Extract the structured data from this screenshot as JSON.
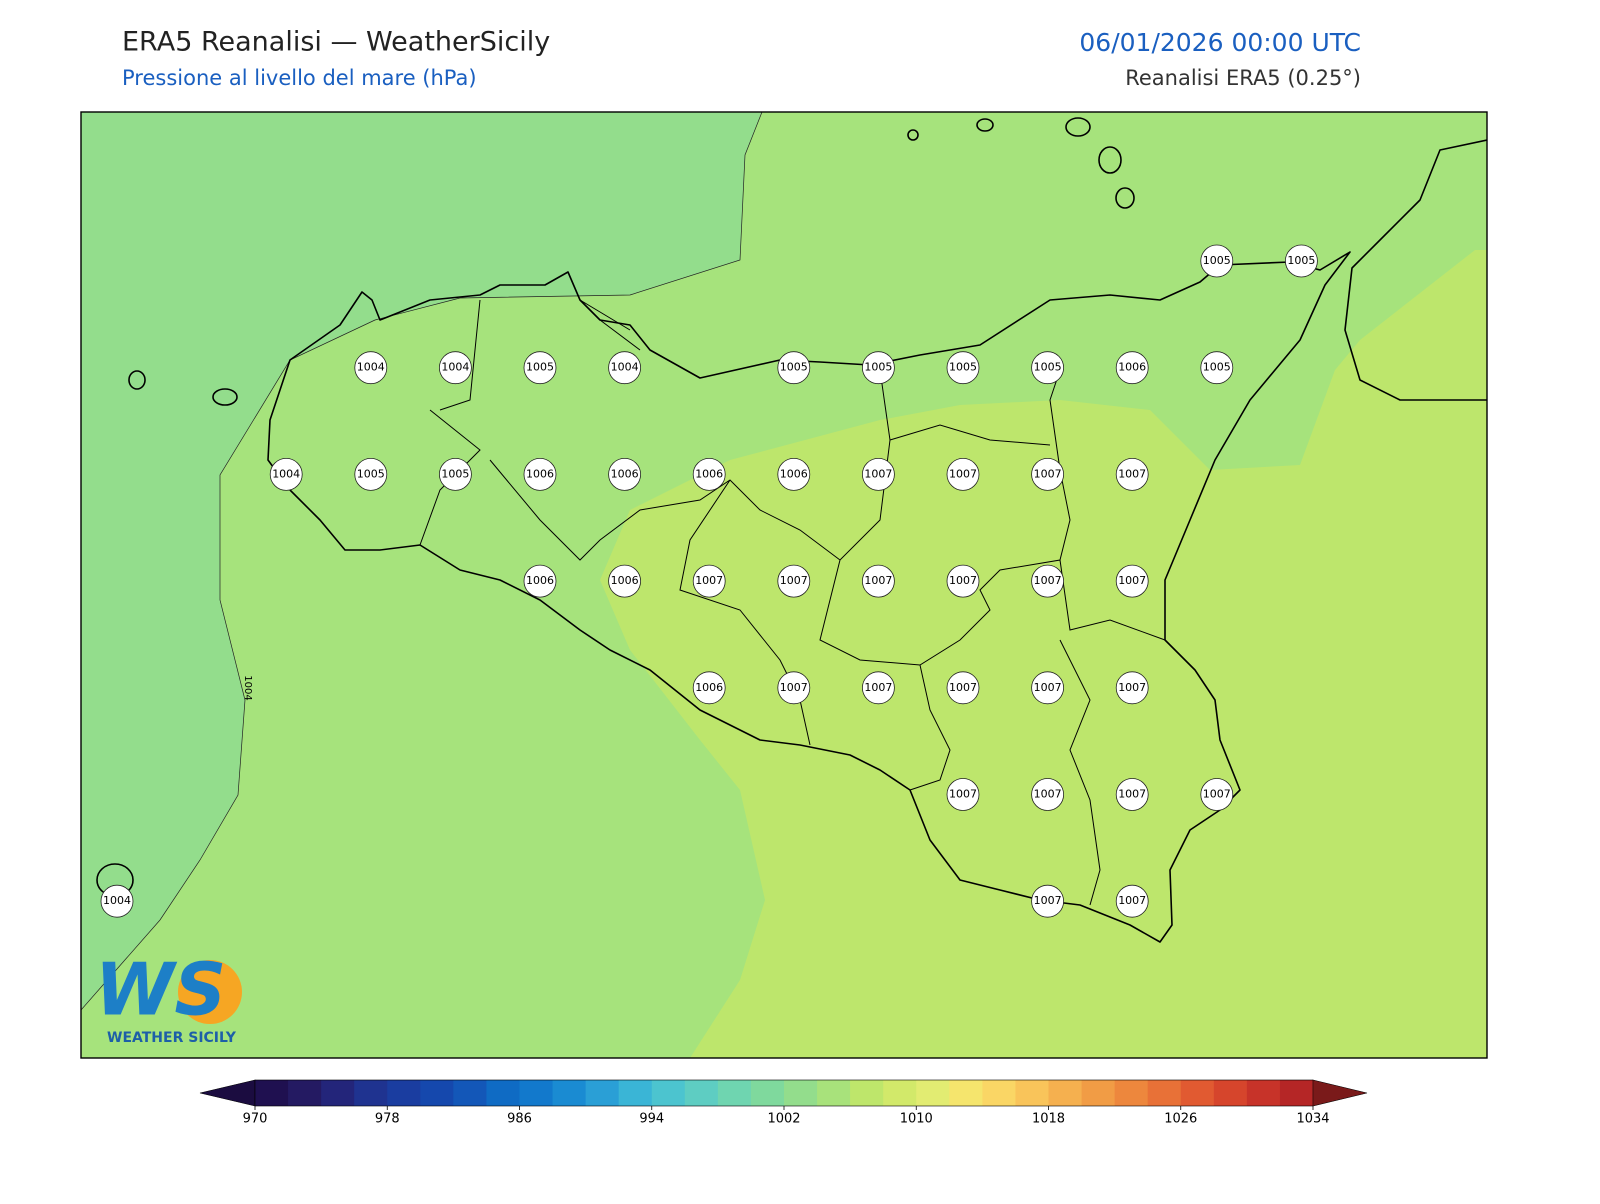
{
  "header": {
    "title": "ERA5 Reanalisi — WeatherSicily",
    "subtitle": "Pressione al livello del mare (hPa)",
    "datetime": "06/01/2026 00:00 UTC",
    "source": "Reanalisi ERA5 (0.25°)"
  },
  "map": {
    "contour_label": "1004",
    "stations": [
      1005,
      1005,
      1004,
      1004,
      1005,
      1004,
      1005,
      1005,
      1005,
      1005,
      1006,
      1005,
      1004,
      1005,
      1005,
      1006,
      1006,
      1006,
      1006,
      1007,
      1007,
      1007,
      1007,
      1006,
      1006,
      1007,
      1007,
      1007,
      1007,
      1007,
      1007,
      1006,
      1007,
      1007,
      1007,
      1007,
      1007,
      1007,
      1007,
      1007,
      1007,
      1004,
      1007,
      1007
    ]
  },
  "logo": {
    "letters": "WS",
    "name": "WEATHER SICILY"
  },
  "colorbar": {
    "min": 970,
    "max": 1034,
    "ticks": [
      970,
      978,
      986,
      994,
      1002,
      1010,
      1018,
      1026,
      1034
    ],
    "under_color": "#1b0c40",
    "over_color": "#7a1a1a",
    "colors": [
      "#1f1050",
      "#241a62",
      "#23257a",
      "#1f3390",
      "#1a3da0",
      "#1548ad",
      "#1357b8",
      "#0f6bc4",
      "#1279cc",
      "#1a8bd2",
      "#2a9fd6",
      "#3ab5d6",
      "#4cc4cf",
      "#5ecdc2",
      "#6fd5b0",
      "#7fd99d",
      "#93dd8c",
      "#a8e27b",
      "#bee66b",
      "#d2e96a",
      "#e2ec72",
      "#f5e56d",
      "#fad665",
      "#f9c45a",
      "#f5b04f",
      "#f19c45",
      "#ed873d",
      "#e87137",
      "#e15a31",
      "#d6452c",
      "#c73329",
      "#b52626"
    ]
  }
}
